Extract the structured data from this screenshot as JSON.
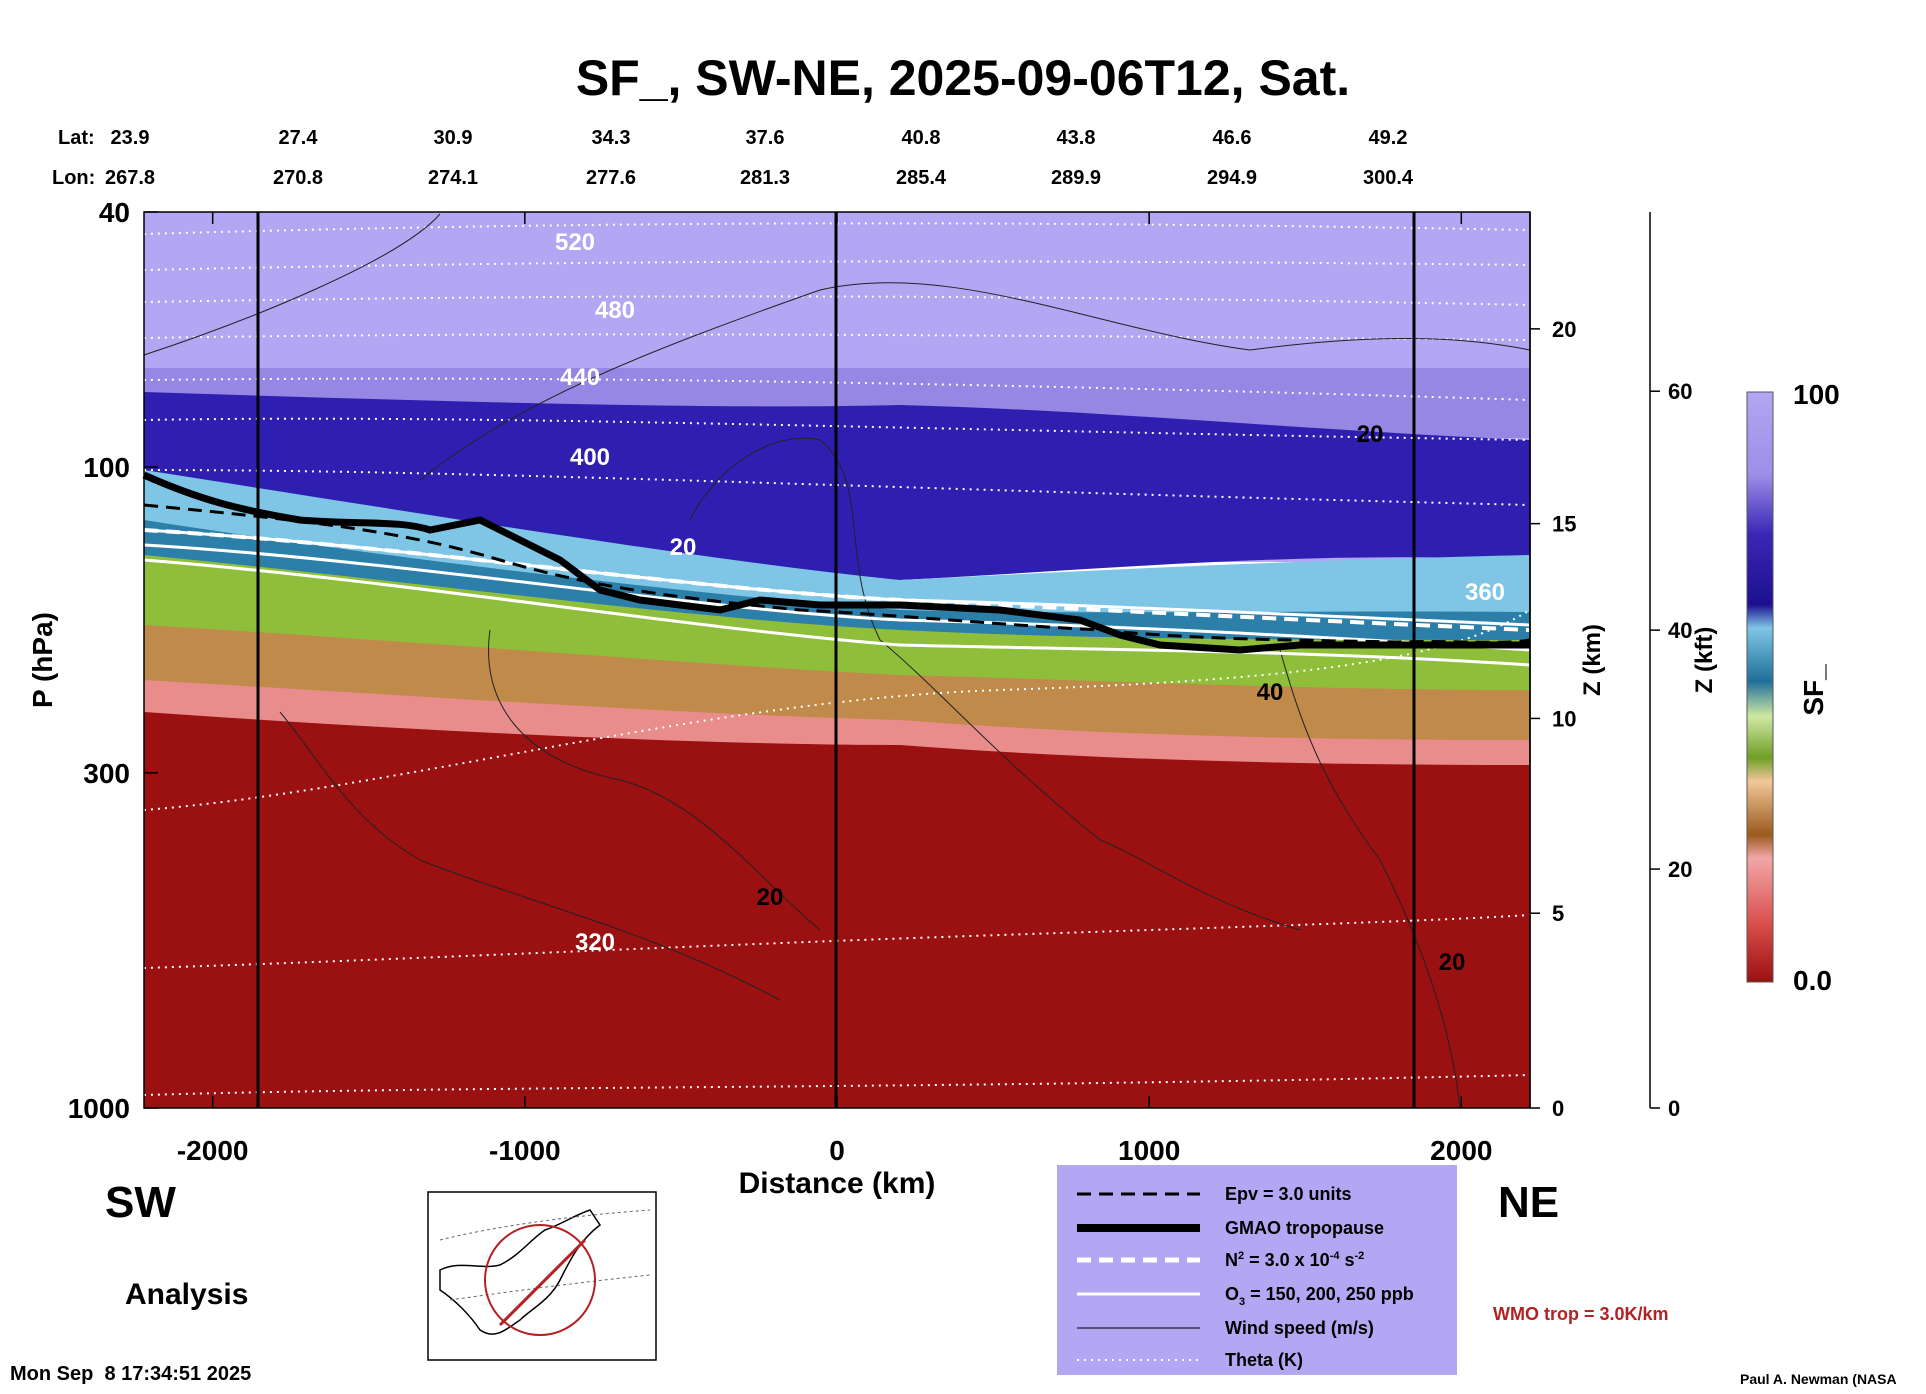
{
  "chart_data": {
    "type": "heatmap",
    "title": "SF_, SW-NE, 2025-09-06T12, Sat.",
    "lat_label": "Lat:",
    "lon_label": "Lon:",
    "lat_values": [
      "23.9",
      "27.4",
      "30.9",
      "34.3",
      "37.6",
      "40.8",
      "43.8",
      "46.6",
      "49.2"
    ],
    "lon_values": [
      "267.8",
      "270.8",
      "274.1",
      "277.6",
      "281.3",
      "285.4",
      "289.9",
      "294.9",
      "300.4"
    ],
    "xlabel": "Distance (km)",
    "ylabel": "P (hPa)",
    "z_km_label": "Z (km)",
    "z_kft_label": "Z (kft)",
    "colorbar_label": "SF_",
    "x_range": [
      -2220,
      2220
    ],
    "y_range": [
      1000,
      40
    ],
    "y_scale": "log",
    "x_ticks": [
      "-2000",
      "-1000",
      "0",
      "1000",
      "2000"
    ],
    "y_ticks": [
      "40",
      "100",
      "300",
      "1000"
    ],
    "z_km_ticks": [
      "0",
      "5",
      "10",
      "15",
      "20"
    ],
    "z_kft_ticks": [
      "0",
      "20",
      "40",
      "60"
    ],
    "colorbar_range": [
      "0.0",
      "100"
    ],
    "colors": {
      "stratosphere": "#b3a6f2",
      "deep_blue": "#2e1fb0",
      "light_blue": "#7fc6e6",
      "green": "#8fbf3a",
      "brown": "#c08a4a",
      "pink": "#e98c8c",
      "troposphere_red": "#9b1010",
      "legend_bg": "#b3a6f2",
      "wmo_text": "#b22222"
    },
    "theta_labels": [
      "520",
      "480",
      "440",
      "400",
      "360",
      "320"
    ],
    "wind_labels": [
      "20",
      "20",
      "40",
      "20",
      "20"
    ],
    "vertical_cross_lines_km": [
      -1850,
      0,
      1850
    ],
    "left_region": "SW",
    "right_region": "NE",
    "analysis_label": "Analysis",
    "legend": [
      {
        "style": "dashed-black",
        "label_main": "Epv = 3.0 units"
      },
      {
        "style": "thick-black",
        "label_main": "GMAO tropopause"
      },
      {
        "style": "dashed-white",
        "label_main": "N",
        "label_sup1": "2",
        "label_mid": " = 3.0 x 10",
        "label_sup2": "-4",
        "label_end": " s",
        "label_sup3": "-2"
      },
      {
        "style": "solid-white",
        "label_main": "O",
        "label_sub": "3",
        "label_end": " = 150, 200, 250 ppb"
      },
      {
        "style": "thin-black",
        "label_main": "Wind speed (m/s)"
      },
      {
        "style": "dotted-white",
        "label_main": "Theta (K)"
      }
    ],
    "wmo_label": "WMO trop = 3.0K/km",
    "timestamp": "Mon Sep  8 17:34:51 2025",
    "credit": "Paul A. Newman (NASA"
  }
}
